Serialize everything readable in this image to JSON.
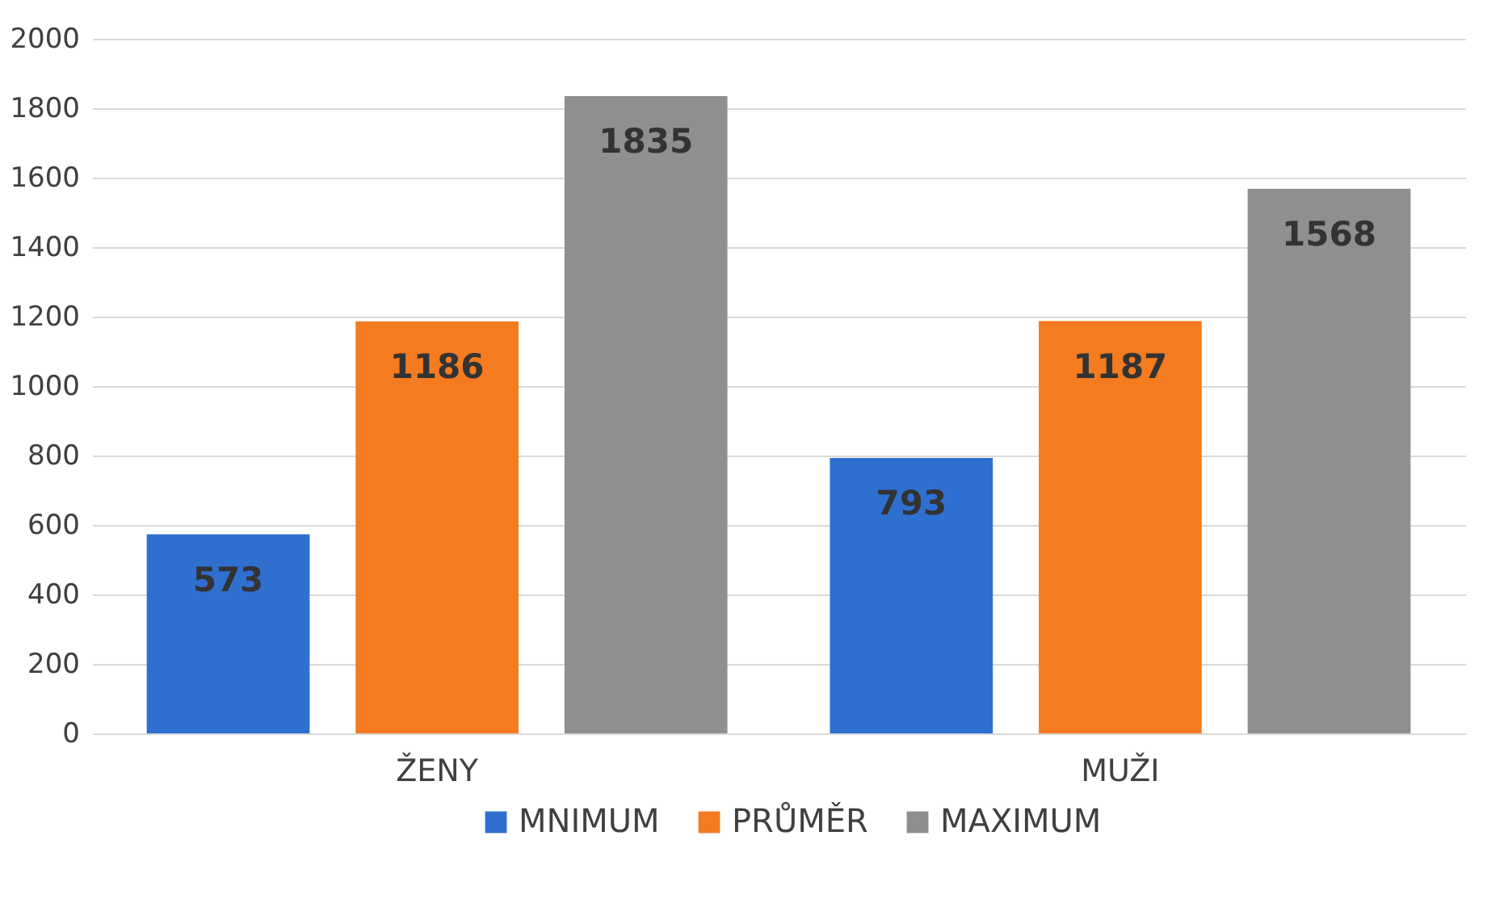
{
  "chart_data": {
    "type": "bar",
    "categories": [
      "ŽENY",
      "MUŽI"
    ],
    "series": [
      {
        "name": "MNIMUM",
        "color": "#2f6fd0",
        "values": [
          573,
          793
        ]
      },
      {
        "name": "PRŮMĚR",
        "color": "#f57b20",
        "values": [
          1186,
          1187
        ]
      },
      {
        "name": "MAXIMUM",
        "color": "#8f8f8f",
        "values": [
          1835,
          1568
        ]
      }
    ],
    "ylim": [
      0,
      2000
    ],
    "yticks": [
      0,
      200,
      400,
      600,
      800,
      1000,
      1200,
      1400,
      1600,
      1800,
      2000
    ],
    "grid": "y",
    "legend": "bottom",
    "data_labels": true
  }
}
